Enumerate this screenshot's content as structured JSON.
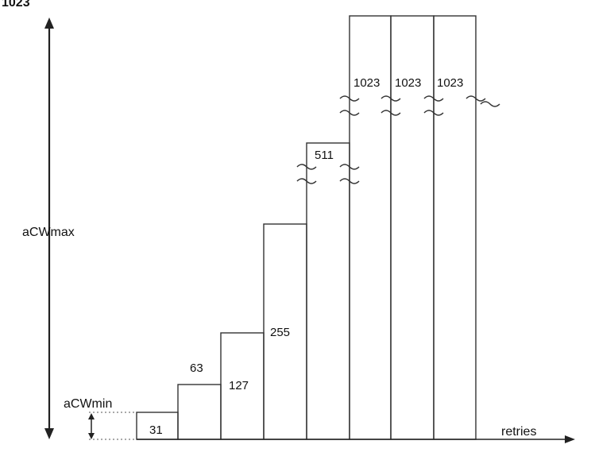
{
  "labels": {
    "top_partial": "1023",
    "cwmax": "aCWmax",
    "cwmin": "aCWmin",
    "retries": "retries"
  },
  "steps": [
    {
      "value": 31,
      "label": "31"
    },
    {
      "value": 63,
      "label": "63"
    },
    {
      "value": 127,
      "label": "127"
    },
    {
      "value": 255,
      "label": "255"
    },
    {
      "value": 511,
      "label": "511"
    },
    {
      "value": 1023,
      "label": "1023"
    },
    {
      "value": 1023,
      "label": "1023"
    },
    {
      "value": 1023,
      "label": "1023"
    }
  ],
  "colors": {
    "line": "#333333",
    "text": "#111111",
    "dotted": "#777777"
  }
}
